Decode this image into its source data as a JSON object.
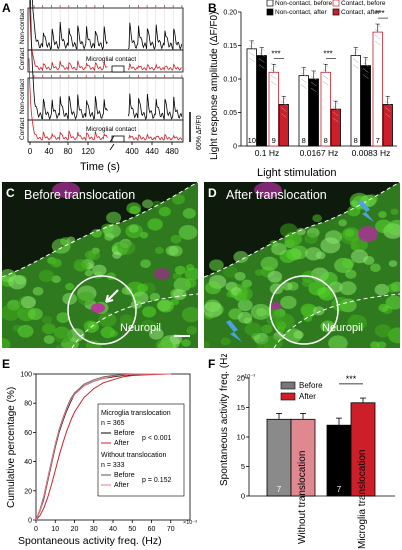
{
  "panels": {
    "A": {
      "label": "A",
      "trace_labels": [
        "Non-contact",
        "Contact",
        "Non-contact",
        "Contact"
      ],
      "annotation": "Microglial contact",
      "scale_label": "60% ΔF/F0",
      "xlabel": "Time (s)",
      "xticks": [
        "0",
        "40",
        "80",
        "120",
        "400",
        "440",
        "480"
      ]
    },
    "B": {
      "label": "B",
      "ylabel": "Light response amplitude (ΔF/F0)",
      "xlabel": "Light stimulation",
      "legend": [
        "Non-contact, before",
        "Non-contact, after",
        "Contact, before",
        "Contact, after"
      ],
      "significance": "***",
      "colors": {
        "noncontact_before": "#ffffff",
        "noncontact_after": "#000000",
        "contact_before": "#ffffff",
        "contact_after": "#cc1f2a"
      }
    },
    "C": {
      "label": "C",
      "title": "Before translocation",
      "region": "Neuropil"
    },
    "D": {
      "label": "D",
      "title": "After translocation",
      "region": "Neuropil"
    },
    "E": {
      "label": "E",
      "ylabel": "Cumulative percentage (%)",
      "xlabel": "Spontaneous activity freq. (Hz)",
      "x_exponent": "×10⁻³",
      "legend": {
        "group1": "Microglia translocation",
        "n1": "n = 365",
        "p1": "p < 0.001",
        "group2": "Without translocation",
        "n2": "n = 333",
        "p2": "p = 0.152",
        "before": "Before",
        "after": "After"
      }
    },
    "F": {
      "label": "F",
      "ylabel": "Spontaneous activity freq. (Hz)",
      "y_exponent": "×10⁻³",
      "legend": [
        "Before",
        "After"
      ],
      "significance": "***",
      "categories": [
        "Without translocation",
        "Microglia translocation"
      ]
    }
  },
  "chart_data": [
    {
      "panel": "B",
      "type": "bar",
      "categories": [
        "0.1 Hz",
        "0.0167 Hz",
        "0.0083 Hz"
      ],
      "ylim": [
        0,
        0.2
      ],
      "yticks": [
        "0",
        "0.05",
        "0.10",
        "0.15",
        "0.20"
      ],
      "series": [
        {
          "name": "Non-contact, before",
          "values": [
            0.145,
            0.105,
            0.135
          ],
          "n": [
            "10",
            "8",
            "8"
          ]
        },
        {
          "name": "Non-contact, after",
          "values": [
            0.135,
            0.1,
            0.12
          ],
          "n": [
            "",
            "",
            ""
          ]
        },
        {
          "name": "Contact, before",
          "values": [
            0.11,
            0.11,
            0.17
          ],
          "n": [
            "9",
            "8",
            "7"
          ]
        },
        {
          "name": "Contact, after",
          "values": [
            0.062,
            0.055,
            0.062
          ],
          "n": [
            "",
            "",
            ""
          ]
        }
      ]
    },
    {
      "panel": "E",
      "type": "line",
      "xlim": [
        0,
        80
      ],
      "ylim": [
        0,
        100
      ],
      "xticks": [
        "0",
        "10",
        "20",
        "30",
        "40",
        "50",
        "60",
        "70"
      ],
      "yticks": [
        "0",
        "20",
        "40",
        "60",
        "80",
        "100"
      ],
      "series": [
        {
          "name": "Before",
          "group": "Microglia translocation",
          "x": [
            0,
            2,
            4,
            6,
            8,
            10,
            12,
            14,
            16,
            18,
            20,
            25,
            30,
            35,
            40,
            45,
            50,
            60,
            70
          ],
          "y": [
            0,
            6,
            14,
            26,
            38,
            50,
            60,
            68,
            75,
            81,
            86,
            92,
            95,
            97,
            98,
            99,
            99.5,
            100,
            100
          ]
        },
        {
          "name": "After",
          "group": "Microglia translocation",
          "x": [
            0,
            2,
            4,
            6,
            8,
            10,
            12,
            14,
            16,
            18,
            20,
            25,
            30,
            35,
            40,
            45,
            50,
            60,
            70
          ],
          "y": [
            0,
            3,
            8,
            15,
            24,
            34,
            44,
            53,
            61,
            68,
            74,
            84,
            90,
            94,
            96,
            98,
            99,
            99.6,
            100
          ]
        },
        {
          "name": "Before",
          "group": "Without translocation",
          "x": [
            0,
            2,
            4,
            6,
            8,
            10,
            12,
            14,
            16,
            18,
            20,
            25,
            30,
            35,
            40,
            45,
            50,
            60,
            70
          ],
          "y": [
            0,
            7,
            16,
            28,
            40,
            52,
            62,
            70,
            77,
            83,
            87,
            93,
            96,
            98,
            99,
            99.5,
            100,
            100,
            100
          ]
        },
        {
          "name": "After",
          "group": "Without translocation",
          "x": [
            0,
            2,
            4,
            6,
            8,
            10,
            12,
            14,
            16,
            18,
            20,
            25,
            30,
            35,
            40,
            45,
            50,
            60,
            70
          ],
          "y": [
            0,
            6,
            15,
            27,
            39,
            51,
            61,
            69,
            76,
            82,
            86,
            92,
            95,
            97,
            98.5,
            99.3,
            99.8,
            100,
            100
          ]
        }
      ]
    },
    {
      "panel": "F",
      "type": "bar",
      "categories": [
        "Without translocation",
        "Microglia translocation"
      ],
      "ylim": [
        0,
        20
      ],
      "yticks": [
        "0",
        "5",
        "10",
        "15",
        "20"
      ],
      "series": [
        {
          "name": "Before",
          "values": [
            13,
            12
          ],
          "err": [
            1,
            1.2
          ],
          "n": [
            "7",
            "7"
          ]
        },
        {
          "name": "After",
          "values": [
            13,
            15.8
          ],
          "err": [
            1,
            0.8
          ],
          "n": [
            "",
            ""
          ]
        }
      ]
    }
  ]
}
